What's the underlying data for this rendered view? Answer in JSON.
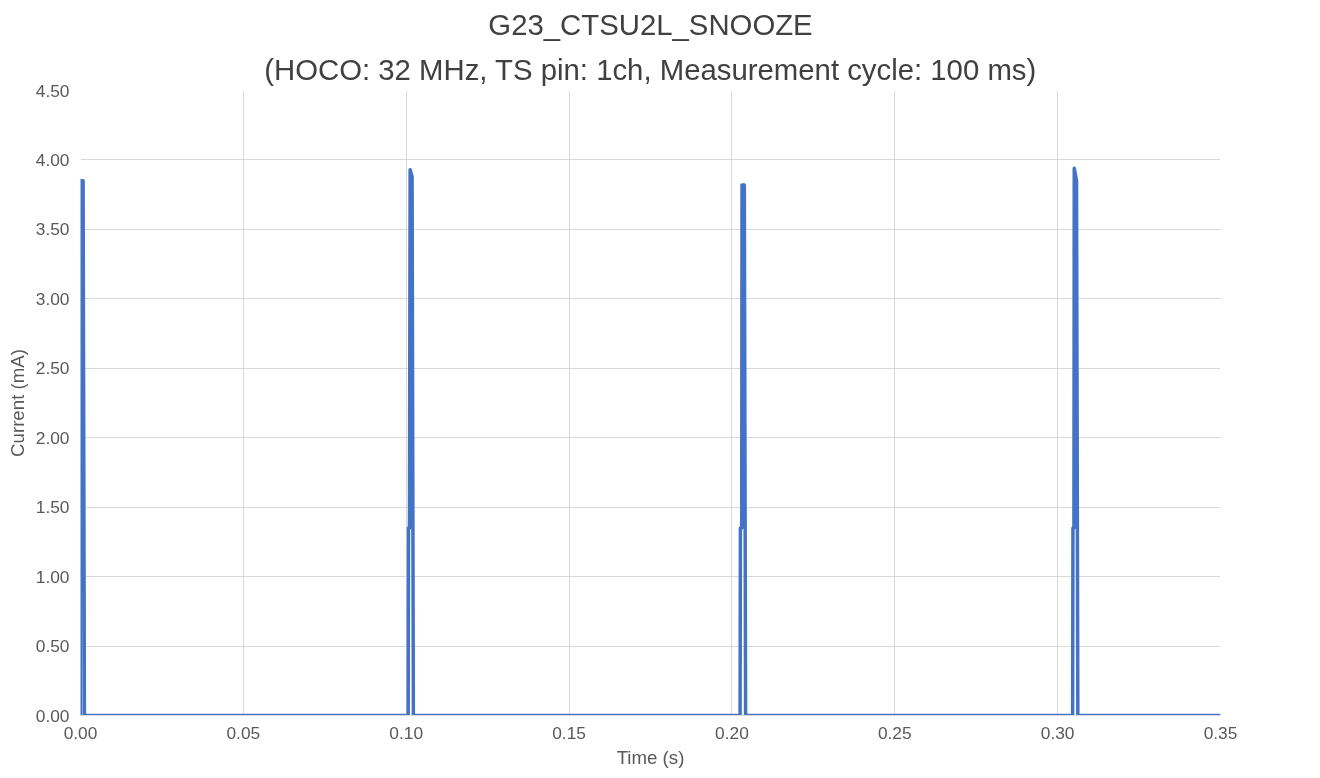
{
  "chart_data": {
    "type": "line",
    "title": "G23_CTSU2L_SNOOZE",
    "subtitle": "(HOCO: 32 MHz, TS pin: 1ch, Measurement cycle: 100 ms)",
    "xlabel": "Time (s)",
    "ylabel": "Current (mA)",
    "series": [
      {
        "color": "#4472c4",
        "x": [
          0,
          0.0001,
          0.0008,
          0.0012,
          0.05,
          0.1006,
          0.1007,
          0.101,
          0.1012,
          0.1018,
          0.1022,
          0.1026,
          0.15,
          0.2025,
          0.2026,
          0.203,
          0.2031,
          0.2038,
          0.2042,
          0.25,
          0.3046,
          0.3047,
          0.305,
          0.3051,
          0.3058,
          0.3062,
          0.35
        ],
        "values": [
          0,
          3.85,
          3.85,
          0,
          0,
          0,
          1.35,
          1.35,
          3.93,
          3.88,
          0,
          0,
          0,
          0,
          1.35,
          1.35,
          3.82,
          3.82,
          0,
          0,
          0,
          1.35,
          1.35,
          3.94,
          3.85,
          0,
          0
        ]
      }
    ],
    "xlim": [
      0,
      0.35
    ],
    "ylim": [
      0,
      4.5
    ],
    "xticks": [
      {
        "value": 0,
        "label": "0.00"
      },
      {
        "value": 0.05,
        "label": "0.05"
      },
      {
        "value": 0.1,
        "label": "0.10"
      },
      {
        "value": 0.15,
        "label": "0.15"
      },
      {
        "value": 0.2,
        "label": "0.20"
      },
      {
        "value": 0.25,
        "label": "0.25"
      },
      {
        "value": 0.3,
        "label": "0.30"
      },
      {
        "value": 0.35,
        "label": "0.35"
      }
    ],
    "yticks": [
      {
        "value": 0,
        "label": "0.00"
      },
      {
        "value": 0.5,
        "label": "0.50"
      },
      {
        "value": 1,
        "label": "1.00"
      },
      {
        "value": 1.5,
        "label": "1.50"
      },
      {
        "value": 2,
        "label": "2.00"
      },
      {
        "value": 2.5,
        "label": "2.50"
      },
      {
        "value": 3,
        "label": "3.00"
      },
      {
        "value": 3.5,
        "label": "3.50"
      },
      {
        "value": 4,
        "label": "4.00"
      },
      {
        "value": 4.5,
        "label": "4.50"
      }
    ],
    "grid": true,
    "marker": "none",
    "line_style": "solid"
  }
}
